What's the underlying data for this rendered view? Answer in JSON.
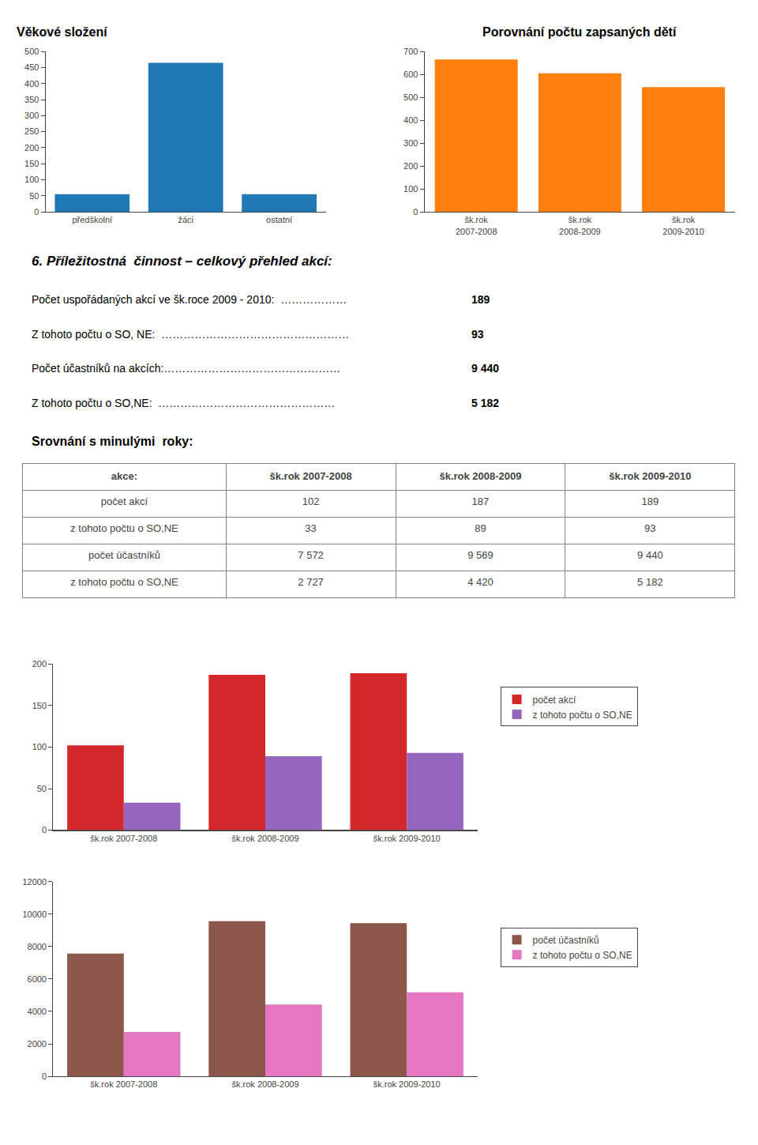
{
  "chart_data": [
    {
      "type": "bar",
      "title": "Věkové složení",
      "categories": [
        "předškolní",
        "žáci",
        "ostatní"
      ],
      "values": [
        55,
        465,
        55
      ],
      "ylim": [
        0,
        500
      ],
      "yticks": [
        0,
        50,
        100,
        150,
        200,
        250,
        300,
        350,
        400,
        450,
        500
      ],
      "grid": false
    },
    {
      "type": "bar",
      "title": "Porovnání počtu zapsaných dětí",
      "categories": [
        "šk.rok\n2007-2008",
        "šk.rok\n2008-2009",
        "šk.rok\n2009-2010"
      ],
      "values": [
        665,
        605,
        545
      ],
      "ylim": [
        0,
        700
      ],
      "yticks": [
        0,
        100,
        200,
        300,
        400,
        500,
        600,
        700
      ],
      "grid": false
    },
    {
      "type": "text",
      "title": "6. Příležitostná  činnost – celkový přehled akcí:",
      "rows": [
        [
          "Počet uspořádaných akcí ve šk.roce 2009 - 2010:  ………………",
          "189"
        ],
        [
          "Z tohoto počtu o SO, NE:  ……………………………………………  ",
          "93"
        ],
        [
          "Počet účastníků na akcích:…………………………………………",
          "9 440"
        ],
        [
          "Z tohoto počtu o SO,NE:  …………………………………………",
          "5 182"
        ]
      ]
    },
    {
      "type": "table",
      "title": "Srovnání s minulými  roky:",
      "columns": [
        "akce:",
        "šk.rok 2007-2008",
        "šk.rok 2008-2009",
        "šk.rok 2009-2010"
      ],
      "rows": [
        [
          "počet akcí",
          "102",
          "187",
          "189"
        ],
        [
          "z tohoto počtu o SO,NE",
          "33",
          "89",
          "93"
        ],
        [
          "počet účastníků",
          "7 572",
          "9 569",
          "9 440"
        ],
        [
          "z tohoto počtu o SO,NE",
          "2 727",
          "4 420",
          "5 182"
        ]
      ]
    },
    {
      "type": "bar",
      "categories": [
        "šk.rok 2007-2008",
        "šk.rok 2008-2009",
        "šk.rok 2009-2010"
      ],
      "series": [
        {
          "name": "počet akcí",
          "values": [
            102,
            187,
            189
          ]
        },
        {
          "name": "z tohoto počtu o SO,NE",
          "values": [
            33,
            89,
            93
          ]
        }
      ],
      "ylim": [
        0,
        200
      ],
      "yticks": [
        0,
        50,
        100,
        150,
        200
      ],
      "grid": false,
      "legend": "right"
    },
    {
      "type": "bar",
      "categories": [
        "šk.rok 2007-2008",
        "šk.rok 2008-2009",
        "šk.rok 2009-2010"
      ],
      "series": [
        {
          "name": "počet účastníků",
          "values": [
            7572,
            9569,
            9440
          ]
        },
        {
          "name": "z tohoto počtu o SO,NE",
          "values": [
            2727,
            4420,
            5182
          ]
        }
      ],
      "ylim": [
        0,
        12000
      ],
      "yticks": [
        0,
        2000,
        4000,
        6000,
        8000,
        10000,
        12000
      ],
      "grid": false,
      "legend": "right"
    }
  ]
}
